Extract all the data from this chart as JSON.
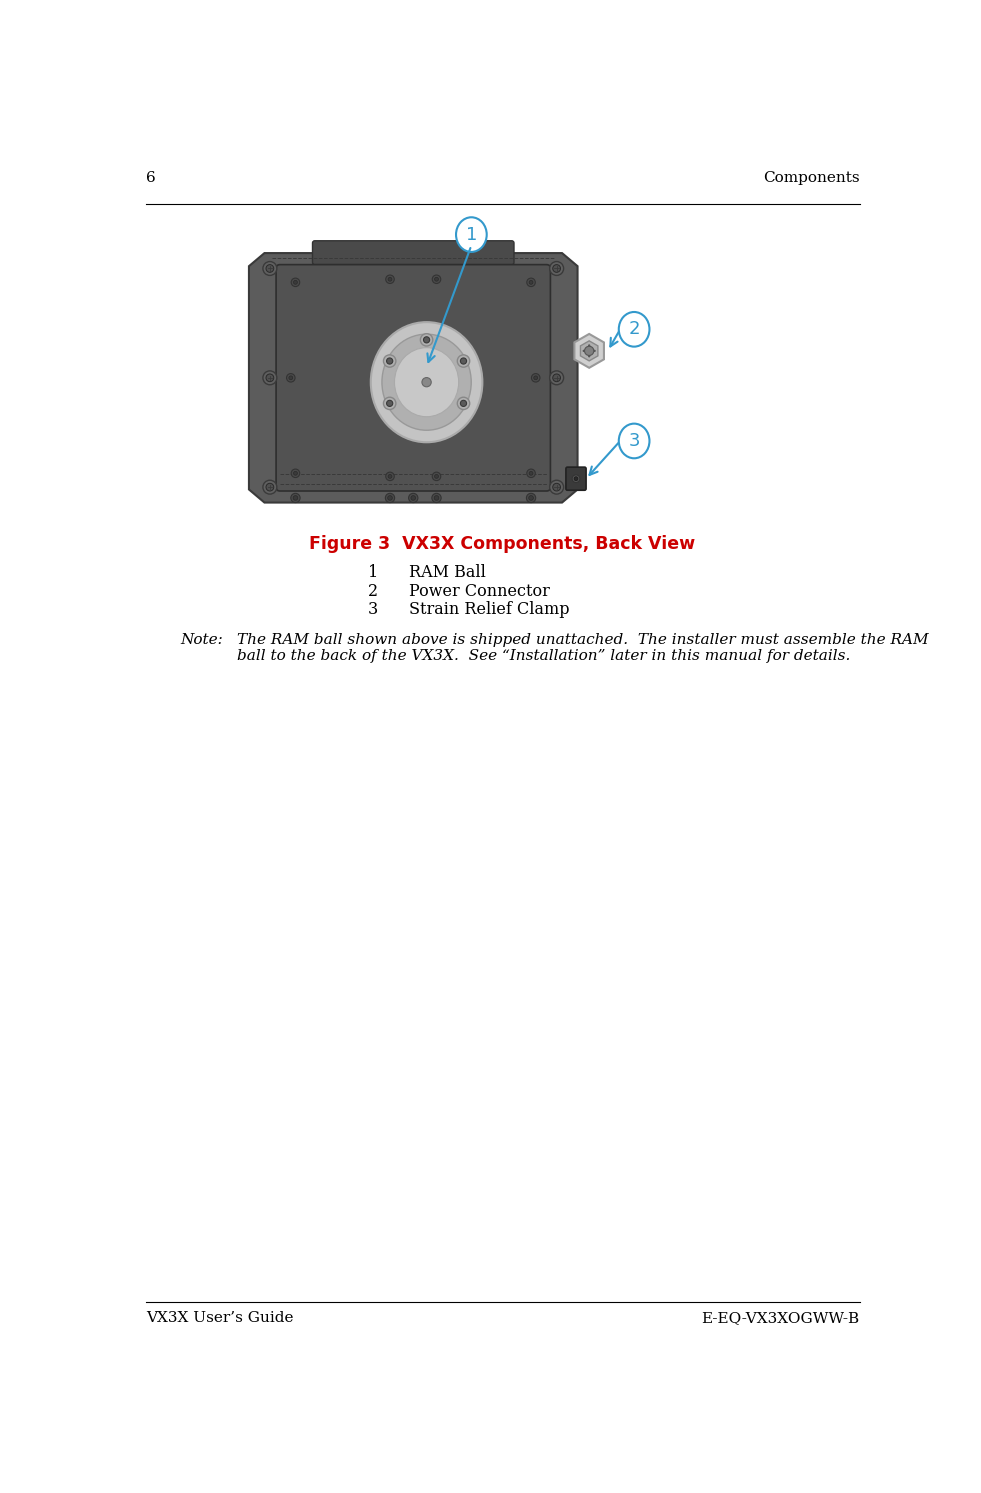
{
  "page_number": "6",
  "header_right": "Components",
  "footer_left": "VX3X User’s Guide",
  "footer_right": "E-EQ-VX3XOGWW-B",
  "figure_title": "Figure 3  VX3X Components, Back View",
  "item_1_num": "1",
  "item_1_label": "RAM Ball",
  "item_2_num": "2",
  "item_2_label": "Power Connector",
  "item_3_num": "3",
  "item_3_label": "Strain Relief Clamp",
  "note_label": "Note:",
  "note_line1": "The RAM ball shown above is shipped unattached.  The installer must assemble the RAM",
  "note_line2": "ball to the back of the VX3X.  See “Installation” later in this manual for details.",
  "callout_color": "#3399cc",
  "figure_title_color": "#cc0000",
  "text_color": "#000000",
  "bg_color": "#ffffff",
  "device_body_color": "#5c5c5c",
  "device_body_edge": "#3a3a3a",
  "device_inner_color": "#525252",
  "device_inner_edge": "#2e2e2e",
  "device_frame_color": "#4a4a4a",
  "disc_outer_color": "#c0c0c0",
  "disc_mid_color": "#b8b8b8",
  "disc_inner_color": "#c8c8c8",
  "screw_color": "#5a5a5a",
  "screw_edge": "#3a3a3a",
  "connector_color": "#d0d0d0",
  "connector_edge": "#999999",
  "clamp_color": "#3a3a3a",
  "clamp_edge": "#222222"
}
